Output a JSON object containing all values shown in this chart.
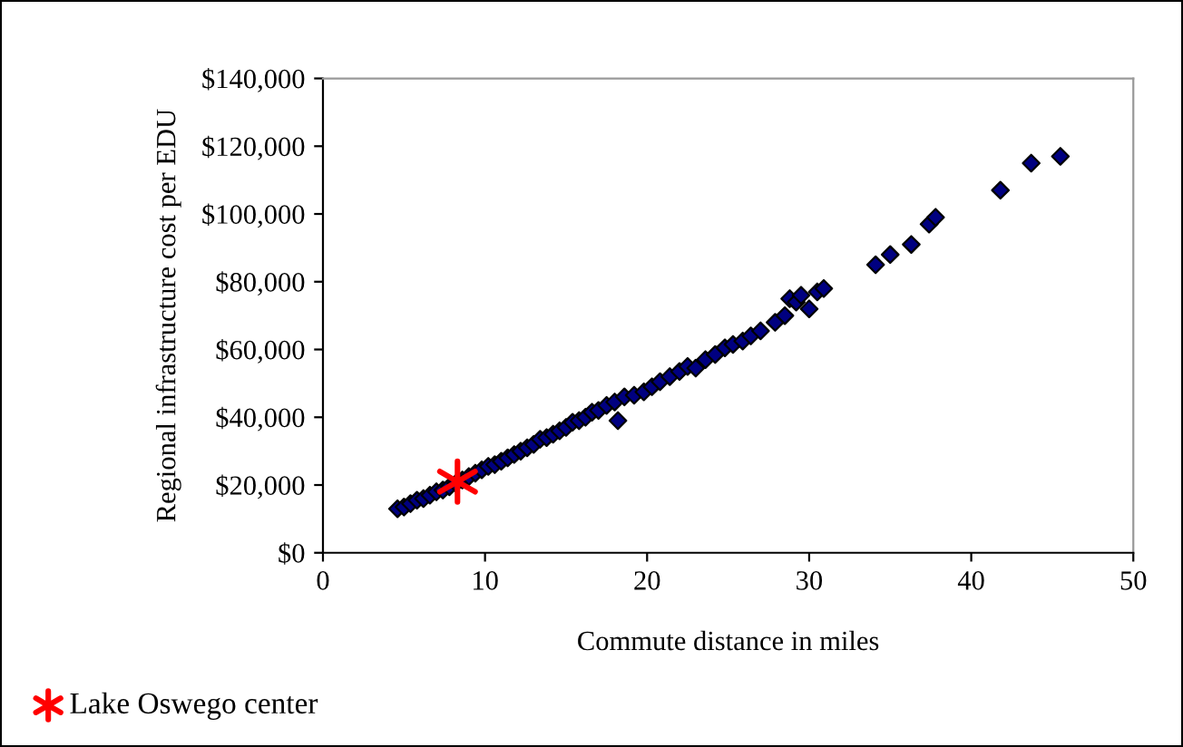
{
  "chart_data": {
    "type": "scatter",
    "xlabel": "Commute distance in miles",
    "ylabel": "Regional infrastructure cost per EDU",
    "xlim": [
      0,
      50
    ],
    "xticks": [
      0,
      10,
      20,
      30,
      40,
      50
    ],
    "ylim": [
      0,
      140000
    ],
    "yticks": [
      {
        "value": 0,
        "label": "$0"
      },
      {
        "value": 20000,
        "label": "$20,000"
      },
      {
        "value": 40000,
        "label": "$40,000"
      },
      {
        "value": 60000,
        "label": "$60,000"
      },
      {
        "value": 80000,
        "label": "$80,000"
      },
      {
        "value": 100000,
        "label": "$100,000"
      },
      {
        "value": 120000,
        "label": "$120,000"
      },
      {
        "value": 140000,
        "label": "$140,000"
      }
    ],
    "grid": false,
    "legend": "bottom left",
    "series": [
      {
        "color": "#000080",
        "marker": "diamond",
        "x": [
          4.6,
          5.0,
          5.4,
          5.8,
          6.2,
          6.6,
          7.0,
          7.4,
          7.8,
          8.2,
          8.6,
          9.0,
          9.4,
          9.8,
          10.2,
          10.6,
          11.0,
          11.4,
          11.8,
          12.2,
          12.6,
          13.0,
          13.4,
          13.8,
          14.2,
          14.6,
          15.0,
          15.4,
          15.8,
          16.2,
          16.6,
          17.0,
          17.5,
          18.0,
          18.2,
          18.6,
          19.2,
          19.8,
          20.3,
          20.8,
          21.4,
          22.0,
          22.5,
          23.0,
          23.6,
          24.2,
          24.8,
          25.3,
          25.9,
          26.4,
          27.0,
          27.9,
          28.5,
          28.8,
          29.2,
          29.5,
          30.0,
          30.5,
          30.9,
          34.1,
          35.0,
          36.3,
          37.4,
          37.8,
          41.8,
          43.7,
          45.5
        ],
        "values": [
          13000,
          13500,
          14500,
          15500,
          16000,
          17000,
          18000,
          18500,
          19500,
          20500,
          21500,
          22500,
          23500,
          24500,
          25500,
          26000,
          27000,
          28000,
          29000,
          30000,
          31000,
          32000,
          33500,
          34000,
          35000,
          36000,
          37000,
          38500,
          39000,
          40000,
          41500,
          42000,
          43500,
          44500,
          39000,
          46000,
          46500,
          47500,
          49000,
          50500,
          52000,
          53500,
          55000,
          54500,
          57000,
          58500,
          60500,
          61500,
          62500,
          64000,
          65500,
          68000,
          70000,
          75000,
          74000,
          76000,
          72000,
          77000,
          78000,
          85000,
          88000,
          91000,
          97000,
          99000,
          107000,
          115000,
          117000
        ]
      },
      {
        "name": "Lake Oswego center",
        "color": "#ff0000",
        "marker": "cross",
        "x": [
          8.3
        ],
        "values": [
          21000
        ]
      }
    ]
  }
}
